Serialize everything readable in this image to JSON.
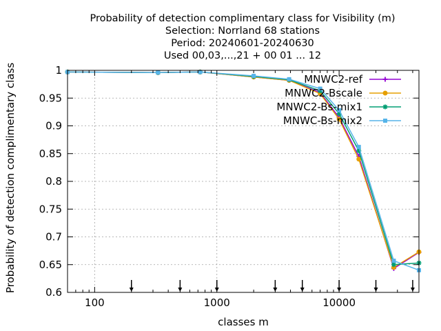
{
  "chart_data": {
    "type": "line",
    "title": [
      "Probability of detection complimentary class  for Visibility (m)",
      "Selection: Norrland     68 stations",
      "Period: 20240601-20240630",
      "Used 00,03,...,21 + 00 01 ... 12"
    ],
    "xlabel": "classes m",
    "ylabel": "Probability of detection complimentary class",
    "x_scale": "log",
    "xlim": [
      60,
      45000
    ],
    "ylim": [
      0.6,
      1.0
    ],
    "x_ticks": [
      100,
      1000,
      10000
    ],
    "x_tick_labels": [
      "100",
      "1000",
      "10000"
    ],
    "y_ticks": [
      0.6,
      0.65,
      0.7,
      0.75,
      0.8,
      0.85,
      0.9,
      0.95,
      1.0
    ],
    "y_tick_labels": [
      "0.6",
      "0.65",
      "0.7",
      "0.75",
      "0.8",
      "0.85",
      "0.9",
      "0.95",
      "1"
    ],
    "grid": true,
    "legend_position": "top-right",
    "threshold_arrows": [
      200,
      500,
      1000,
      3000,
      5000,
      10000,
      20000,
      40000
    ],
    "x": [
      60,
      330,
      730,
      2000,
      3900,
      7000,
      10000,
      14500,
      28000,
      45000
    ],
    "series": [
      {
        "name": "MNWC2-ref",
        "color": "#9400d3",
        "marker": "plus",
        "values": [
          0.997,
          0.996,
          0.997,
          0.988,
          0.982,
          0.96,
          0.915,
          0.845,
          0.643,
          0.672
        ]
      },
      {
        "name": "MNWC2-Bscale",
        "color": "#e69f00",
        "marker": "circle",
        "values": [
          0.997,
          0.996,
          0.997,
          0.988,
          0.982,
          0.958,
          0.912,
          0.84,
          0.645,
          0.673
        ]
      },
      {
        "name": "MNWC2-Bs-mix1",
        "color": "#009e73",
        "marker": "star",
        "values": [
          0.997,
          0.996,
          0.997,
          0.989,
          0.983,
          0.963,
          0.922,
          0.855,
          0.65,
          0.653
        ]
      },
      {
        "name": "MNWC-Bs-mix2",
        "color": "#56b4e9",
        "marker": "box",
        "values": [
          0.997,
          0.996,
          0.997,
          0.99,
          0.984,
          0.967,
          0.928,
          0.862,
          0.657,
          0.64
        ]
      }
    ]
  }
}
